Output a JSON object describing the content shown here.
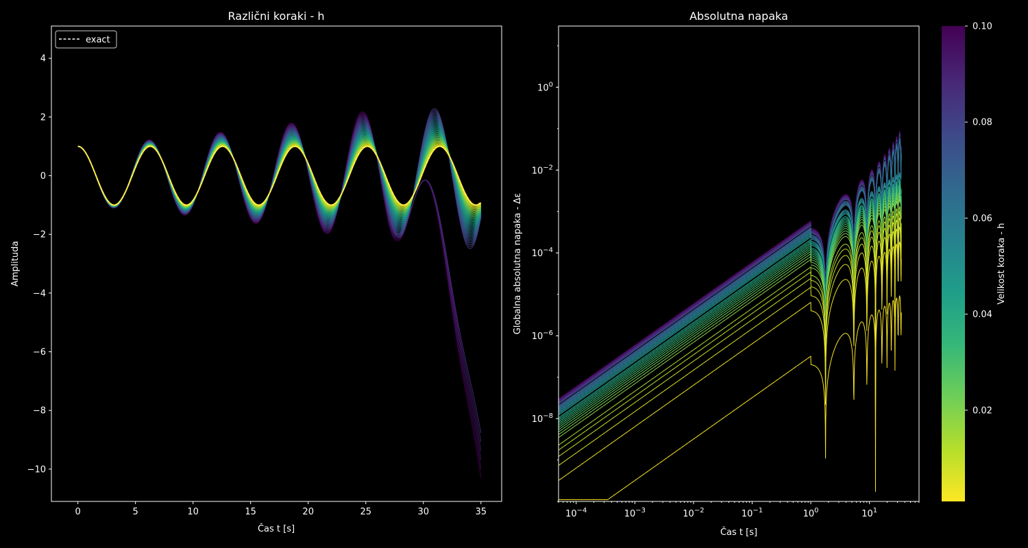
{
  "chart_data": [
    {
      "type": "line",
      "title": "Različni koraki - h",
      "xlabel": "Čas t [s]",
      "ylabel": "Amplituda",
      "xlim": [
        -2.3,
        36.8
      ],
      "ylim": [
        -11.1,
        5.1
      ],
      "xticks": [
        0,
        5,
        10,
        15,
        20,
        25,
        30,
        35
      ],
      "xtick_labels": [
        "0",
        "5",
        "10",
        "15",
        "20",
        "25",
        "30",
        "35"
      ],
      "yticks": [
        4,
        2,
        0,
        -2,
        -4,
        -6,
        -8,
        -10
      ],
      "ytick_labels": [
        "4",
        "2",
        "0",
        "−2",
        "−4",
        "−6",
        "−8",
        "−10"
      ],
      "legend": {
        "position": "top-left",
        "entries": [
          {
            "label": "exact",
            "style": "dashed",
            "color": "#ffffff"
          }
        ]
      },
      "grid": false,
      "series_description": {
        "curves": 40,
        "h_min": 0.001,
        "h_max": 0.1,
        "t_max": 35,
        "colormap": "viridis_r"
      }
    },
    {
      "type": "line",
      "title": "Absolutna napaka",
      "xlabel": "Čas t [s]",
      "ylabel": "Globalna absolutna napaka - Δε",
      "xscale": "log",
      "yscale": "log",
      "xlim": [
        5e-05,
        70
      ],
      "ylim": [
        1e-10,
        30
      ],
      "xticks": [
        0.0001,
        0.001,
        0.01,
        0.1,
        1,
        10
      ],
      "xtick_labels": [
        [
          "10",
          "−4"
        ],
        [
          "10",
          "−3"
        ],
        [
          "10",
          "−2"
        ],
        [
          "10",
          "−1"
        ],
        [
          "10",
          "0"
        ],
        [
          "10",
          "1"
        ]
      ],
      "yticks": [
        1,
        0.01,
        0.0001,
        1e-06,
        1e-08
      ],
      "ytick_labels": [
        [
          "10",
          "0"
        ],
        [
          "10",
          "−2"
        ],
        [
          "10",
          "−4"
        ],
        [
          "10",
          "−6"
        ],
        [
          "10",
          "−8"
        ]
      ],
      "grid": false
    }
  ],
  "colorbar": {
    "label": "Velikost koraka - h",
    "min": 0.001,
    "max": 0.1,
    "ticks": [
      0.1,
      0.08,
      0.06,
      0.04,
      0.02
    ],
    "tick_labels": [
      "0.10",
      "0.08",
      "0.06",
      "0.04",
      "0.02"
    ],
    "colormap": "viridis"
  },
  "colors": {
    "viridis": [
      "#440154",
      "#482878",
      "#3e4a89",
      "#31688e",
      "#26828e",
      "#1f9e89",
      "#35b779",
      "#6ece58",
      "#b5de2b",
      "#fde725"
    ],
    "background": "#000000",
    "foreground": "#ffffff"
  }
}
